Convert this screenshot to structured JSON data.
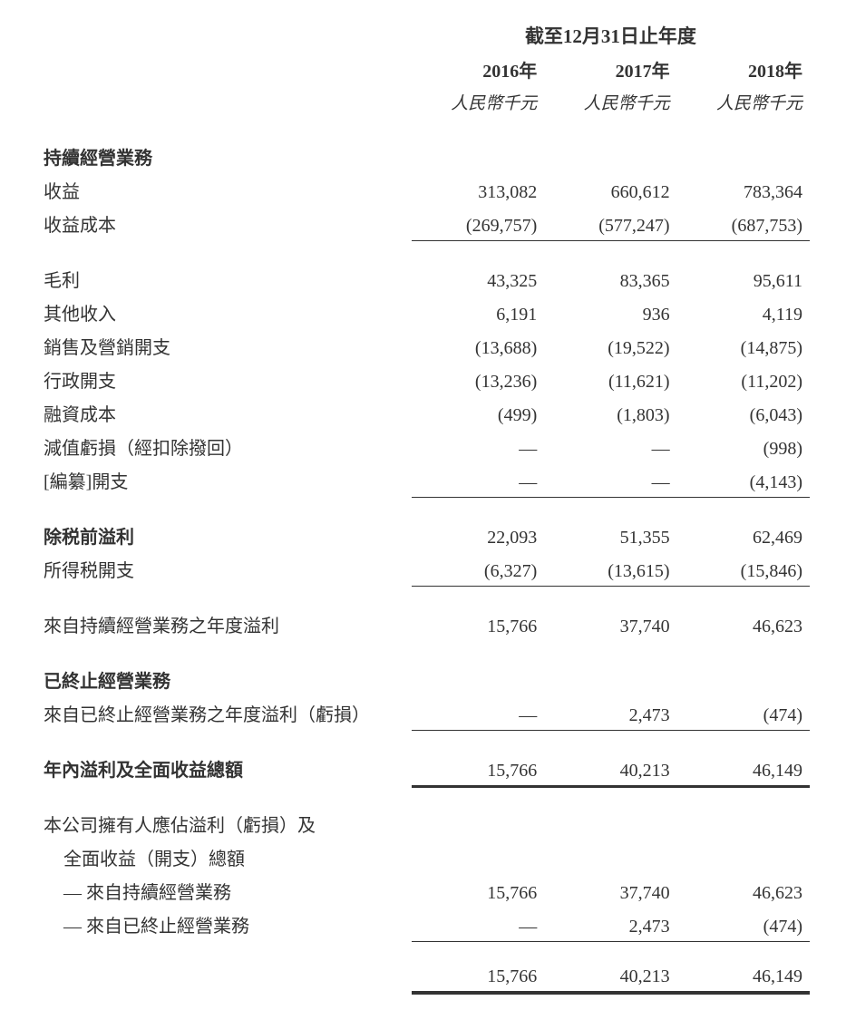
{
  "header": {
    "span_title": "截至12月31日止年度",
    "years": [
      "2016年",
      "2017年",
      "2018年"
    ],
    "unit": "人民幣千元"
  },
  "sections": {
    "continuing_ops_header": "持續經營業務",
    "revenue": {
      "label": "收益",
      "y2016": "313,082",
      "y2017": "660,612",
      "y2018": "783,364"
    },
    "cost_of_revenue": {
      "label": "收益成本",
      "y2016": "(269,757)",
      "y2017": "(577,247)",
      "y2018": "(687,753)"
    },
    "gross_profit": {
      "label": "毛利",
      "y2016": "43,325",
      "y2017": "83,365",
      "y2018": "95,611"
    },
    "other_income": {
      "label": "其他收入",
      "y2016": "6,191",
      "y2017": "936",
      "y2018": "4,119"
    },
    "selling_expenses": {
      "label": "銷售及營銷開支",
      "y2016": "(13,688)",
      "y2017": "(19,522)",
      "y2018": "(14,875)"
    },
    "admin_expenses": {
      "label": "行政開支",
      "y2016": "(13,236)",
      "y2017": "(11,621)",
      "y2018": "(11,202)"
    },
    "finance_costs": {
      "label": "融資成本",
      "y2016": "(499)",
      "y2017": "(1,803)",
      "y2018": "(6,043)"
    },
    "impairment_loss": {
      "label": "減值虧損（經扣除撥回）",
      "y2016": "—",
      "y2017": "—",
      "y2018": "(998)"
    },
    "listing_expenses": {
      "label": "[編纂]開支",
      "y2016": "—",
      "y2017": "—",
      "y2018": "(4,143)"
    },
    "profit_before_tax": {
      "label": "除税前溢利",
      "y2016": "22,093",
      "y2017": "51,355",
      "y2018": "62,469"
    },
    "income_tax": {
      "label": "所得税開支",
      "y2016": "(6,327)",
      "y2017": "(13,615)",
      "y2018": "(15,846)"
    },
    "profit_continuing": {
      "label": "來自持續經營業務之年度溢利",
      "y2016": "15,766",
      "y2017": "37,740",
      "y2018": "46,623"
    },
    "discontinued_ops_header": "已終止經營業務",
    "profit_discontinued": {
      "label": "來自已終止經營業務之年度溢利（虧損）",
      "y2016": "—",
      "y2017": "2,473",
      "y2018": "(474)"
    },
    "total_comprehensive": {
      "label": "年內溢利及全面收益總額",
      "y2016": "15,766",
      "y2017": "40,213",
      "y2018": "46,149"
    },
    "attributable_header_l1": "本公司擁有人應佔溢利（虧損）及",
    "attributable_header_l2": "全面收益（開支）總額",
    "attr_continuing": {
      "label": "— 來自持續經營業務",
      "y2016": "15,766",
      "y2017": "37,740",
      "y2018": "46,623"
    },
    "attr_discontinued": {
      "label": "— 來自已終止經營業務",
      "y2016": "—",
      "y2017": "2,473",
      "y2018": "(474)"
    },
    "attr_total": {
      "y2016": "15,766",
      "y2017": "40,213",
      "y2018": "46,149"
    }
  },
  "style": {
    "text_color": "#333333",
    "background_color": "#ffffff",
    "body_fontsize": 20,
    "header_fontsize": 21
  }
}
